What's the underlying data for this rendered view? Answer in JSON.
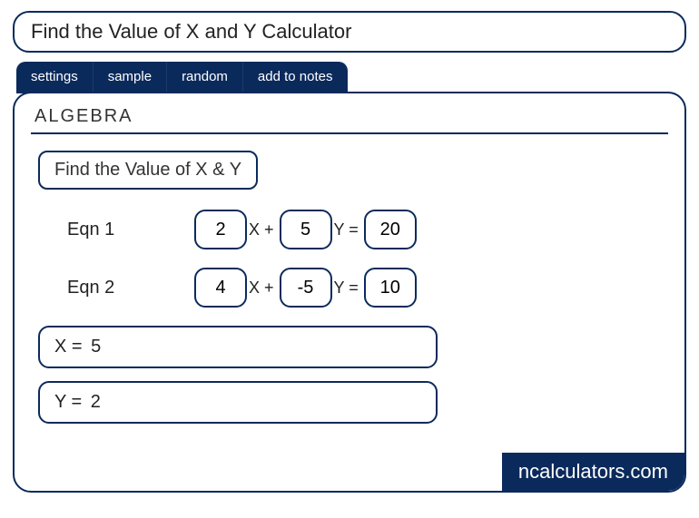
{
  "colors": {
    "primary": "#0b2a5c",
    "text": "#222222",
    "background": "#ffffff"
  },
  "title": "Find the Value of X and Y Calculator",
  "tabs": {
    "settings": "settings",
    "sample": "sample",
    "random": "random",
    "add_to_notes": "add to notes"
  },
  "section": "ALGEBRA",
  "subtitle": "Find the Value of X & Y",
  "equations": {
    "eqn1": {
      "label": "Eqn 1",
      "a": "2",
      "b": "5",
      "c": "20",
      "op1": "X +",
      "op2": "Y =",
      "op_after": ""
    },
    "eqn2": {
      "label": "Eqn 2",
      "a": "4",
      "b": "-5",
      "c": "10",
      "op1": "X +",
      "op2": "Y =",
      "op_after": ""
    }
  },
  "results": {
    "x_label": "X  =",
    "x_value": "5",
    "y_label": "Y  =",
    "y_value": "2"
  },
  "branding": "ncalculators.com"
}
